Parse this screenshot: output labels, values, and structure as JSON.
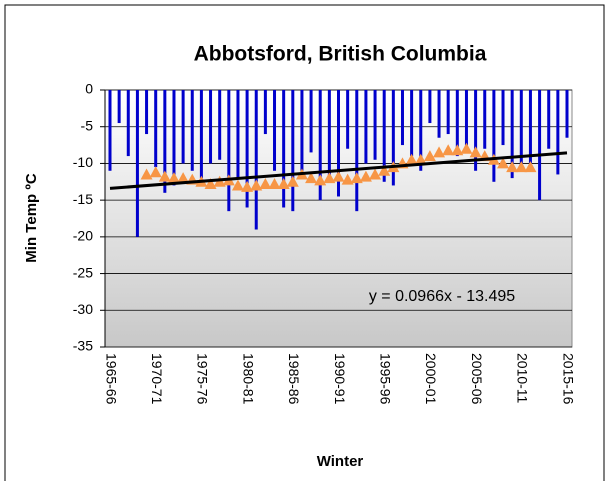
{
  "chart_data": {
    "type": "bar",
    "title": "Abbotsford, British Columbia",
    "xlabel": "Winter",
    "ylabel": "Min Temp ºC",
    "categories": [
      "1965-66",
      null,
      null,
      null,
      null,
      "1970-71",
      null,
      null,
      null,
      null,
      "1975-76",
      null,
      null,
      null,
      null,
      "1980-81",
      null,
      null,
      null,
      null,
      "1985-86",
      null,
      null,
      null,
      null,
      "1990-91",
      null,
      null,
      null,
      null,
      "1995-96",
      null,
      null,
      null,
      null,
      "2000-01",
      null,
      null,
      null,
      null,
      "2005-06",
      null,
      null,
      null,
      null,
      "2010-11",
      null,
      null,
      null,
      null,
      "2015-16"
    ],
    "series": [
      {
        "type": "bar",
        "color": "#0000cc",
        "values": [
          -11,
          -4.5,
          -9,
          -20,
          -6,
          -10.5,
          -14,
          -13,
          -10,
          -11,
          -12,
          -10,
          -9.5,
          -16.5,
          -12,
          -16,
          -19,
          -6,
          -11,
          -16,
          -16.5,
          -11,
          -8.5,
          -15,
          -12,
          -14.5,
          -8,
          -16.5,
          -10,
          -9.5,
          -12.5,
          -13,
          -7.5,
          -9,
          -11,
          -4.5,
          -6.5,
          -6,
          -9,
          -8.5,
          -11,
          -8,
          -12.5,
          -7.5,
          -12,
          -11,
          -10,
          -15,
          -8,
          -11.5,
          -6.5
        ]
      },
      {
        "type": "triangle",
        "color": "#f79646",
        "values": [
          null,
          null,
          null,
          null,
          -11.5,
          -11.2,
          -11.8,
          -12,
          -12,
          -12.2,
          -12.5,
          -12.8,
          -12.5,
          -12.3,
          -13,
          -13.2,
          -13,
          -12.8,
          -12.8,
          -12.8,
          -12.5,
          -11.5,
          -12,
          -12.3,
          -12,
          -11.8,
          -12.2,
          -12,
          -11.8,
          -11.5,
          -11,
          -10.5,
          -10,
          -9.5,
          -9.5,
          -9,
          -8.5,
          -8.2,
          -8.2,
          -8,
          -8.5,
          -9,
          -9.5,
          -10,
          -10.5,
          -10.5,
          -10.5,
          null,
          null,
          null,
          null
        ]
      }
    ],
    "trendline": {
      "slope": 0.0966,
      "intercept": -13.495,
      "color": "#000000",
      "label": "y = 0.0966x - 13.495"
    },
    "ylim": [
      -35,
      0
    ],
    "yticks": [
      0,
      -5,
      -10,
      -15,
      -20,
      -25,
      -30,
      -35
    ],
    "grid": true
  }
}
